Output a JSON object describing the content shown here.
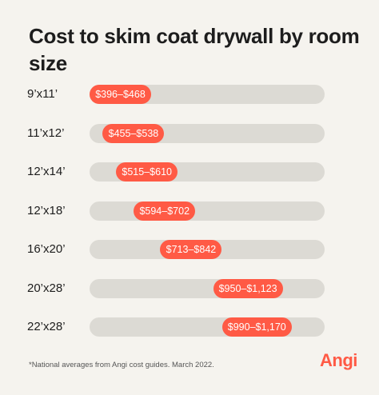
{
  "title": "Cost to skim coat drywall by room size",
  "footnote": "*National averages from Angi cost guides. March 2022.",
  "logo": "Angi",
  "colors": {
    "pill": "#ff5a45",
    "track": "#dcdad4",
    "background": "#f5f3ee"
  },
  "chart_data": {
    "type": "bar",
    "title": "Cost to skim coat drywall by room size",
    "categories": [
      "9’x11’",
      "11’x12’",
      "12’x14’",
      "12’x18’",
      "16’x20’",
      "20’x28’",
      "22’x28’"
    ],
    "ranges": [
      {
        "low": 396,
        "high": 468,
        "label": "$396–$468"
      },
      {
        "low": 455,
        "high": 538,
        "label": "$455–$538"
      },
      {
        "low": 515,
        "high": 610,
        "label": "$515–$610"
      },
      {
        "low": 594,
        "high": 702,
        "label": "$594–$702"
      },
      {
        "low": 713,
        "high": 842,
        "label": "$713–$842"
      },
      {
        "low": 950,
        "high": 1123,
        "label": "$950–$1,123"
      },
      {
        "low": 990,
        "high": 1170,
        "label": "$990–$1,170"
      }
    ],
    "xlim": [
      396,
      1170
    ]
  }
}
